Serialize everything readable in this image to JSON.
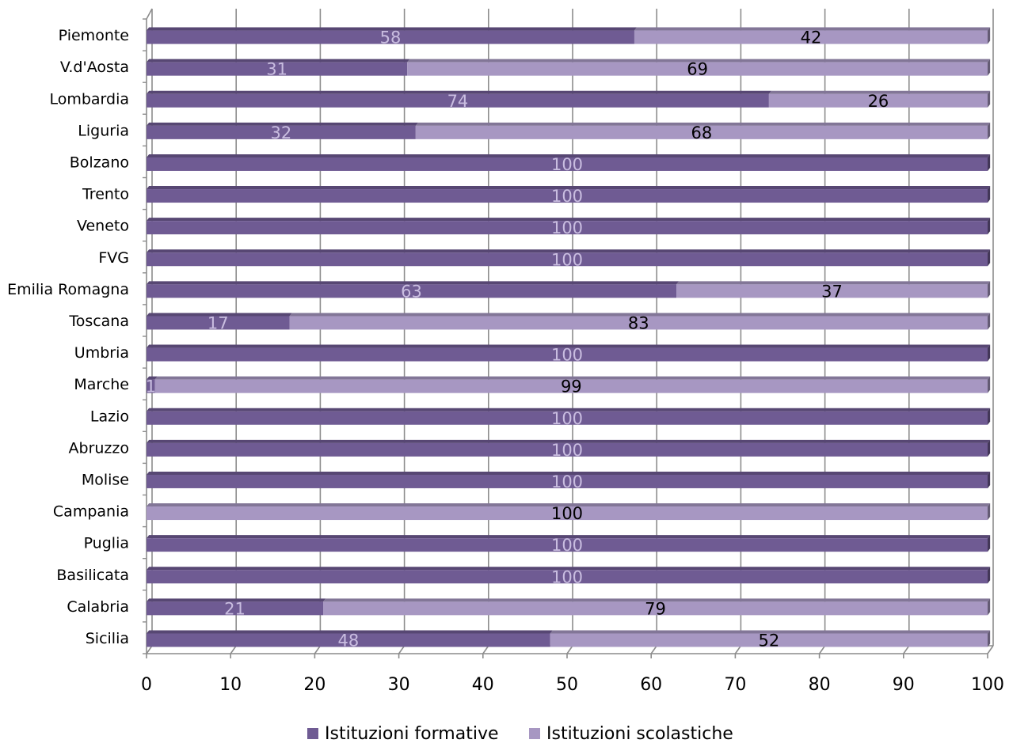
{
  "chart_data": {
    "type": "bar",
    "orientation": "horizontal",
    "stacked": true,
    "categories": [
      "Piemonte",
      "V.d'Aosta",
      "Lombardia",
      "Liguria",
      "Bolzano",
      "Trento",
      "Veneto",
      "FVG",
      "Emilia Romagna",
      "Toscana",
      "Umbria",
      "Marche",
      "Lazio",
      "Abruzzo",
      "Molise",
      "Campania",
      "Puglia",
      "Basilicata",
      "Calabria",
      "Sicilia"
    ],
    "series": [
      {
        "name": "Istituzioni formative",
        "color": "#6f5b93",
        "values": [
          58,
          31,
          74,
          32,
          100,
          100,
          100,
          100,
          63,
          17,
          100,
          1,
          100,
          100,
          100,
          0,
          100,
          100,
          21,
          48
        ]
      },
      {
        "name": "Istituzioni scolastiche",
        "color": "#a797c2",
        "values": [
          42,
          69,
          26,
          68,
          0,
          0,
          0,
          0,
          37,
          83,
          0,
          99,
          0,
          0,
          0,
          100,
          0,
          0,
          79,
          52
        ]
      }
    ],
    "xlim": [
      0,
      100
    ],
    "x_ticks": [
      "0",
      "10",
      "20",
      "30",
      "40",
      "50",
      "60",
      "70",
      "80",
      "90",
      "100"
    ],
    "grid": "vertical",
    "legend_position": "bottom",
    "title": "",
    "xlabel": "",
    "ylabel": ""
  }
}
